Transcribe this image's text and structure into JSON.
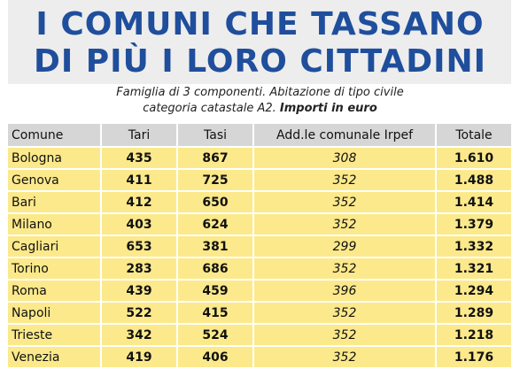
{
  "title": {
    "line1": "I COMUNI CHE TASSANO",
    "line2": "DI PIÙ I LORO CITTADINI"
  },
  "subtitle": {
    "line1": "Famiglia di 3 componenti. Abitazione di tipo civile",
    "line2_prefix": "categoria catastale A2. ",
    "line2_bold": "Importi in euro"
  },
  "table": {
    "headers": [
      "Comune",
      "Tari",
      "Tasi",
      "Add.le comunale Irpef",
      "Totale"
    ],
    "rows": [
      [
        "Bologna",
        "435",
        "867",
        "308",
        "1.610"
      ],
      [
        "Genova",
        "411",
        "725",
        "352",
        "1.488"
      ],
      [
        "Bari",
        "412",
        "650",
        "352",
        "1.414"
      ],
      [
        "Milano",
        "403",
        "624",
        "352",
        "1.379"
      ],
      [
        "Cagliari",
        "653",
        "381",
        "299",
        "1.332"
      ],
      [
        "Torino",
        "283",
        "686",
        "352",
        "1.321"
      ],
      [
        "Roma",
        "439",
        "459",
        "396",
        "1.294"
      ],
      [
        "Napoli",
        "522",
        "415",
        "352",
        "1.289"
      ],
      [
        "Trieste",
        "342",
        "524",
        "352",
        "1.218"
      ],
      [
        "Venezia",
        "419",
        "406",
        "352",
        "1.176"
      ]
    ]
  },
  "colors": {
    "title": "#1f4e9c",
    "title_background": "#ededed",
    "header_background": "#d6d6d6",
    "row_background": "#fce98b"
  }
}
